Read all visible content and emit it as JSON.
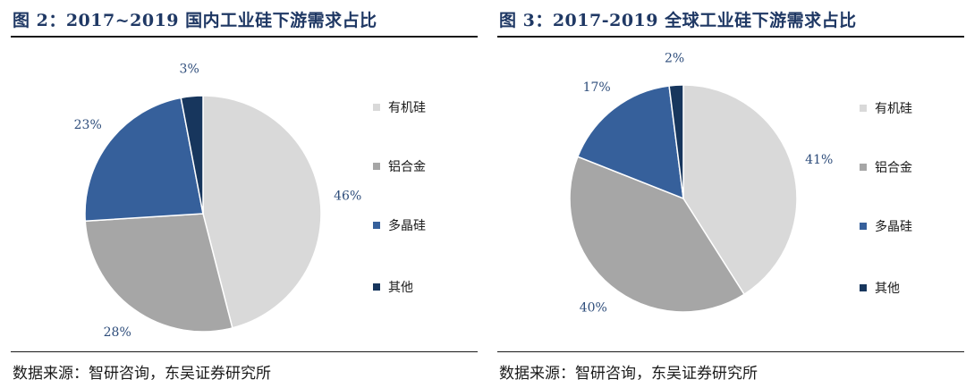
{
  "source_text": "数据来源：智研咨询，东吴证券研究所",
  "chart_data": [
    {
      "type": "pie",
      "title": "图 2：2017~2019 国内工业硅下游需求占比",
      "categories": [
        "有机硅",
        "铝合金",
        "多晶硅",
        "其他"
      ],
      "values": [
        46,
        28,
        23,
        3
      ],
      "labels": [
        "46%",
        "28%",
        "23%",
        "3%"
      ],
      "colors": [
        "#d9d9d9",
        "#a6a6a6",
        "#36609b",
        "#17365d"
      ],
      "legend_position": "right"
    },
    {
      "type": "pie",
      "title": "图 3：2017-2019 全球工业硅下游需求占比",
      "categories": [
        "有机硅",
        "铝合金",
        "多晶硅",
        "其他"
      ],
      "values": [
        41,
        40,
        17,
        2
      ],
      "labels": [
        "41%",
        "40%",
        "17%",
        "2%"
      ],
      "colors": [
        "#d9d9d9",
        "#a6a6a6",
        "#36609b",
        "#17365d"
      ],
      "legend_position": "right"
    }
  ]
}
